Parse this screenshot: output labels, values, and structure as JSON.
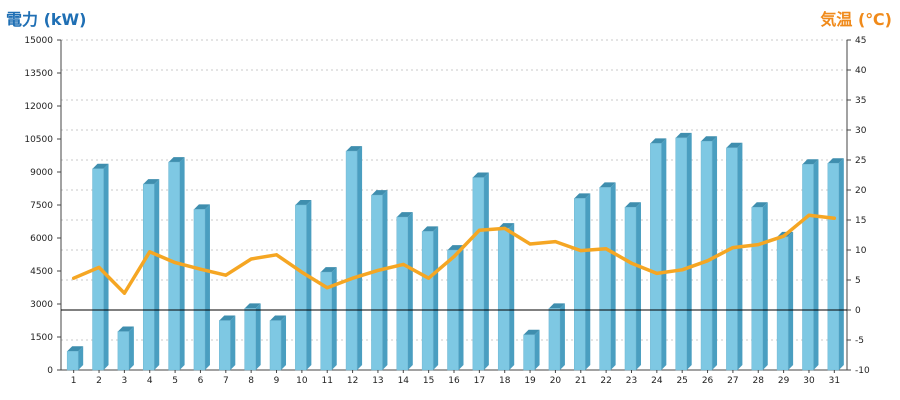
{
  "chart_data": {
    "type": "bar",
    "title": "",
    "y_left_label": "電力 (kW)",
    "y_right_label": "気温 (℃)",
    "categories": [
      "1",
      "2",
      "3",
      "4",
      "5",
      "6",
      "7",
      "8",
      "9",
      "10",
      "11",
      "12",
      "13",
      "14",
      "15",
      "16",
      "17",
      "18",
      "19",
      "20",
      "21",
      "22",
      "23",
      "24",
      "25",
      "26",
      "27",
      "28",
      "29",
      "30",
      "31"
    ],
    "ylim_left": [
      0,
      15000
    ],
    "yticks_left": [
      "0",
      "1500",
      "3000",
      "4500",
      "6000",
      "7500",
      "9000",
      "10500",
      "12000",
      "13500",
      "15000"
    ],
    "ylim_right": [
      -10,
      45
    ],
    "yticks_right": [
      "-10",
      "-5",
      "0",
      "5",
      "10",
      "15",
      "20",
      "25",
      "30",
      "35",
      "40",
      "45"
    ],
    "grid": true,
    "series": [
      {
        "axis": "left",
        "kind": "bar",
        "color": "#7ec8e3",
        "values": [
          850,
          9150,
          1750,
          8450,
          9450,
          7300,
          2250,
          2800,
          2250,
          7500,
          4450,
          9950,
          7950,
          6950,
          6300,
          5450,
          8750,
          6450,
          1600,
          2800,
          7800,
          8300,
          7400,
          10300,
          10550,
          10400,
          10100,
          7400,
          6050,
          9350,
          9400
        ]
      },
      {
        "axis": "right",
        "kind": "line",
        "color": "#f5a623",
        "values": [
          5.3,
          7.1,
          2.8,
          9.7,
          7.9,
          6.8,
          5.8,
          8.5,
          9.2,
          6.3,
          3.7,
          5.3,
          6.6,
          7.6,
          5.3,
          8.9,
          13.3,
          13.6,
          11.0,
          11.4,
          9.9,
          10.2,
          7.8,
          6.1,
          6.7,
          8.2,
          10.4,
          10.9,
          12.3,
          15.8,
          15.3
        ]
      }
    ]
  }
}
